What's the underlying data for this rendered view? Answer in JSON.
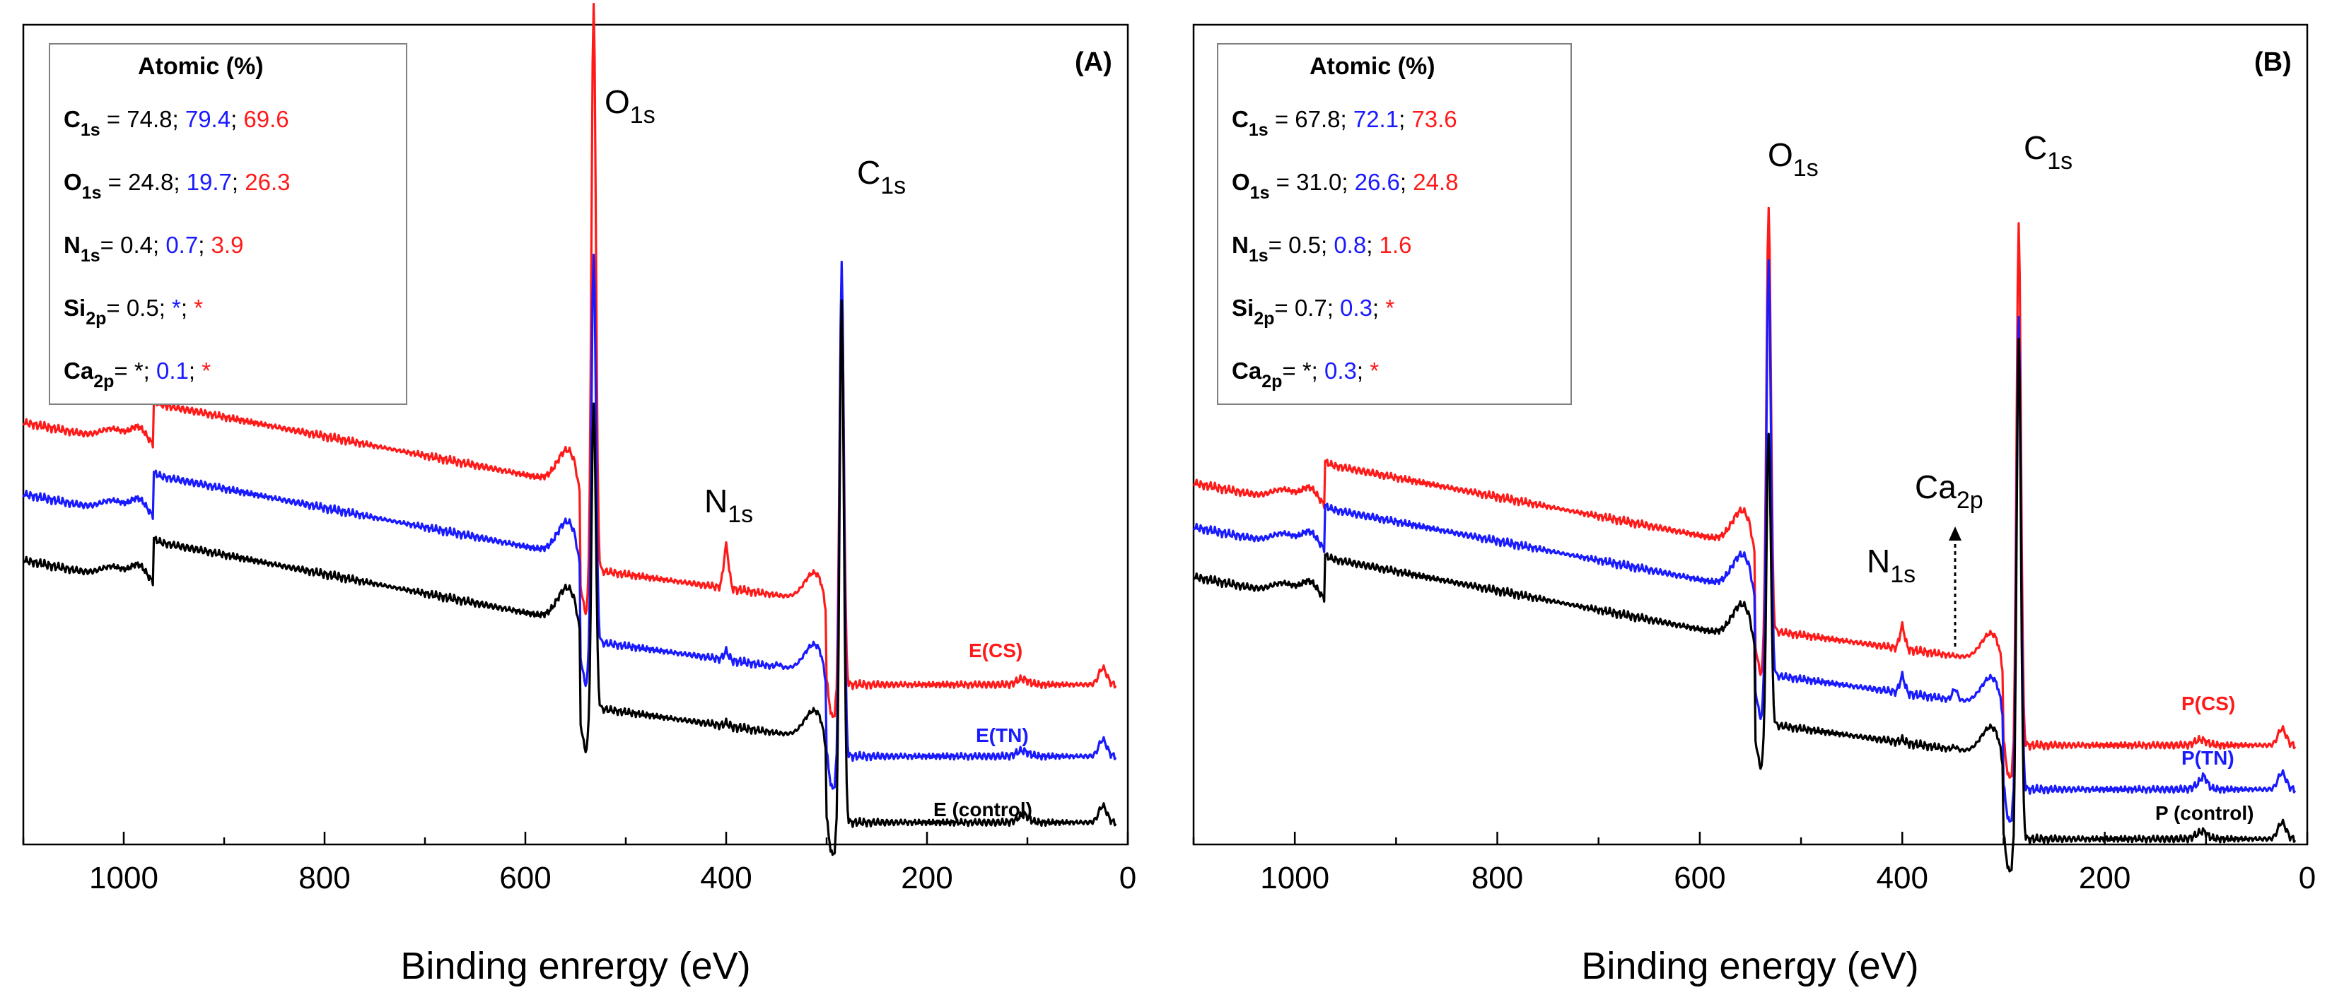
{
  "colors": {
    "black": "#000000",
    "blue": "#1a1aff",
    "red": "#ff1a1a"
  },
  "chart_data": [
    {
      "type": "line",
      "panel_label": "(A)",
      "xlabel": "Binding enrergy (eV)",
      "ylabel": "",
      "xlim": [
        1100,
        0
      ],
      "x_ticks": [
        1000,
        800,
        600,
        400,
        200,
        0
      ],
      "x_tick_labels": [
        "1000",
        "800",
        "600",
        "400",
        "200",
        "0"
      ],
      "series": [
        {
          "name": "E(CS)",
          "color": "#ff1a1a",
          "offset": 60.0,
          "peaks": {
            "O1s": 210,
            "C1s": 148,
            "N1s": 15,
            "Si2p": 0,
            "Ca2p": 0
          }
        },
        {
          "name": "E(TN)",
          "color": "#1a1aff",
          "offset": 34.0,
          "peaks": {
            "O1s": 145,
            "C1s": 180,
            "N1s": 3,
            "Si2p": 0,
            "Ca2p": 1
          }
        },
        {
          "name": "E (control)",
          "color": "#000000",
          "offset": 10.0,
          "peaks": {
            "O1s": 115,
            "C1s": 190,
            "N1s": 1,
            "Si2p": 1,
            "Ca2p": 0
          }
        }
      ],
      "peak_labels": [
        {
          "main": "O",
          "sub": "1s",
          "x": 520
        },
        {
          "main": "C",
          "sub": "1s",
          "x": 268
        },
        {
          "main": "N",
          "sub": "1s",
          "x": 420
        }
      ],
      "annotation_box": {
        "title": "Atomic (%)",
        "rows": [
          {
            "el": "C",
            "sub": "1s",
            "sep": " = ",
            "v1": "74.8; ",
            "v2": "79.4",
            "mid": "; ",
            "v3": "69.6"
          },
          {
            "el": "O",
            "sub": "1s",
            "sep": " = ",
            "v1": "24.8; ",
            "v2": "19.7",
            "mid": "; ",
            "v3": "26.3"
          },
          {
            "el": "N",
            "sub": "1s",
            "sep": "= ",
            "v1": "0.4; ",
            "v2": "0.7",
            "mid": "; ",
            "v3": "3.9"
          },
          {
            "el": "Si",
            "sub": "2p",
            "sep": "= ",
            "v1": "0.5; ",
            "v2": "*",
            "mid": "; ",
            "v3": "*"
          },
          {
            "el": "Ca",
            "sub": "2p",
            "sep": "= ",
            "v1": "*; ",
            "v2": "0.1",
            "mid": "; ",
            "v3": "*"
          }
        ]
      }
    },
    {
      "type": "line",
      "panel_label": "(B)",
      "xlabel": "Binding energy (eV)",
      "ylabel": "",
      "xlim": [
        1100,
        0
      ],
      "x_ticks": [
        1000,
        800,
        600,
        400,
        200,
        0
      ],
      "x_tick_labels": [
        "1000",
        "800",
        "600",
        "400",
        "200",
        "0"
      ],
      "series": [
        {
          "name": "P(CS)",
          "color": "#ff1a1a",
          "offset": 38.0,
          "peaks": {
            "O1s": 158,
            "C1s": 190,
            "N1s": 8,
            "Si2p": 0,
            "Ca2p": 0
          }
        },
        {
          "name": "P(TN)",
          "color": "#1a1aff",
          "offset": 22.0,
          "peaks": {
            "O1s": 155,
            "C1s": 172,
            "N1s": 6,
            "Si2p": 3,
            "Ca2p": 4
          }
        },
        {
          "name": "P (control)",
          "color": "#000000",
          "offset": 4.0,
          "peaks": {
            "O1s": 110,
            "C1s": 182,
            "N1s": 1,
            "Si2p": 1,
            "Ca2p": 1
          }
        }
      ],
      "peak_labels": [
        {
          "main": "O",
          "sub": "1s",
          "x": 530
        },
        {
          "main": "C",
          "sub": "1s",
          "x": 272
        },
        {
          "main": "N",
          "sub": "1s",
          "x": 430
        },
        {
          "main": "Ca",
          "sub": "2p",
          "x": 360
        }
      ],
      "annotation_box": {
        "title": "Atomic (%)",
        "rows": [
          {
            "el": "C",
            "sub": "1s",
            "sep": " = ",
            "v1": "67.8; ",
            "v2": "72.1",
            "mid": "; ",
            "v3": "73.6"
          },
          {
            "el": "O",
            "sub": "1s",
            "sep": " = ",
            "v1": "31.0; ",
            "v2": "26.6",
            "mid": "; ",
            "v3": "24.8"
          },
          {
            "el": "N",
            "sub": "1s",
            "sep": "= ",
            "v1": "0.5; ",
            "v2": "0.8",
            "mid": "; ",
            "v3": "1.6"
          },
          {
            "el": "Si",
            "sub": "2p",
            "sep": "= ",
            "v1": "0.7; ",
            "v2": "0.3",
            "mid": "; ",
            "v3": "*"
          },
          {
            "el": "Ca",
            "sub": "2p",
            "sep": "= ",
            "v1": "*; ",
            "v2": "0.3",
            "mid": "; ",
            "v3": "*"
          }
        ]
      }
    }
  ]
}
